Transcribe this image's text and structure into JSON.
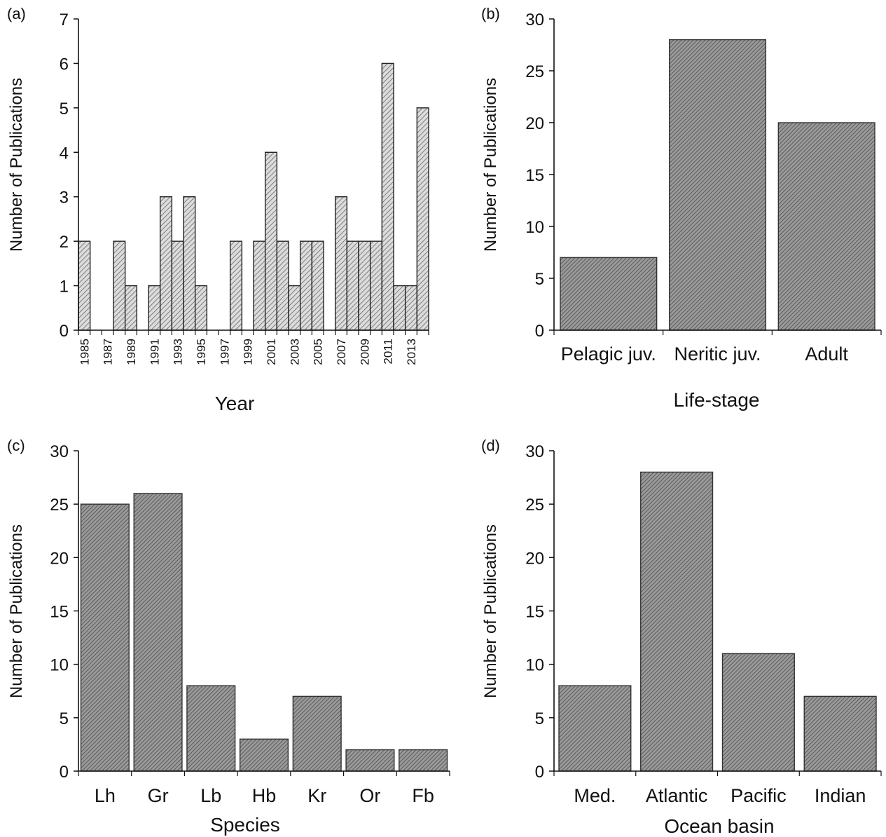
{
  "figure": {
    "panels": [
      {
        "id": "a",
        "label": "(a)"
      },
      {
        "id": "b",
        "label": "(b)"
      },
      {
        "id": "c",
        "label": "(c)"
      },
      {
        "id": "d",
        "label": "(d)"
      }
    ]
  },
  "chart_data": [
    {
      "panel": "(a)",
      "type": "bar",
      "xlabel": "Year",
      "ylabel": "Number of Publications",
      "ylim": [
        0,
        7
      ],
      "yticks": [
        "0",
        "1",
        "2",
        "3",
        "4",
        "5",
        "6",
        "7"
      ],
      "x": [
        1985,
        1986,
        1987,
        1988,
        1989,
        1990,
        1991,
        1992,
        1993,
        1994,
        1995,
        1996,
        1997,
        1998,
        1999,
        2000,
        2001,
        2002,
        2003,
        2004,
        2005,
        2006,
        2007,
        2008,
        2009,
        2010,
        2011,
        2012,
        2013,
        2014
      ],
      "values": [
        2,
        0,
        0,
        2,
        1,
        0,
        1,
        3,
        2,
        3,
        1,
        0,
        0,
        2,
        0,
        2,
        4,
        2,
        1,
        2,
        2,
        0,
        3,
        2,
        2,
        2,
        6,
        1,
        1,
        5
      ],
      "xtick_labels": [
        "1985",
        "1987",
        "1989",
        "1991",
        "1993",
        "1995",
        "1997",
        "1999",
        "2001",
        "2003",
        "2005",
        "2007",
        "2009",
        "2011",
        "2013"
      ],
      "fill": "hatched grey",
      "grid": false,
      "legend": "none"
    },
    {
      "panel": "(b)",
      "type": "bar",
      "xlabel": "Life-stage",
      "ylabel": "Number of Publications",
      "ylim": [
        0,
        30
      ],
      "yticks": [
        "0",
        "5",
        "10",
        "15",
        "20",
        "25",
        "30"
      ],
      "categories": [
        "Pelagic juv.",
        "Neritic juv.",
        "Adult"
      ],
      "values": [
        7,
        28,
        20
      ],
      "fill": "hatched dark grey",
      "grid": false,
      "legend": "none"
    },
    {
      "panel": "(c)",
      "type": "bar",
      "xlabel": "Species",
      "ylabel": "Number of Publications",
      "ylim": [
        0,
        30
      ],
      "yticks": [
        "0",
        "5",
        "10",
        "15",
        "20",
        "25",
        "30"
      ],
      "categories": [
        "Lh",
        "Gr",
        "Lb",
        "Hb",
        "Kr",
        "Or",
        "Fb"
      ],
      "values": [
        25,
        26,
        8,
        3,
        7,
        2,
        2
      ],
      "fill": "hatched dark grey",
      "grid": false,
      "legend": "none"
    },
    {
      "panel": "(d)",
      "type": "bar",
      "xlabel": "Ocean basin",
      "ylabel": "Number of Publications",
      "ylim": [
        0,
        30
      ],
      "yticks": [
        "0",
        "5",
        "10",
        "15",
        "20",
        "25",
        "30"
      ],
      "categories": [
        "Med.",
        "Atlantic",
        "Pacific",
        "Indian"
      ],
      "values": [
        8,
        28,
        11,
        7
      ],
      "fill": "hatched dark grey",
      "grid": false,
      "legend": "none"
    }
  ]
}
